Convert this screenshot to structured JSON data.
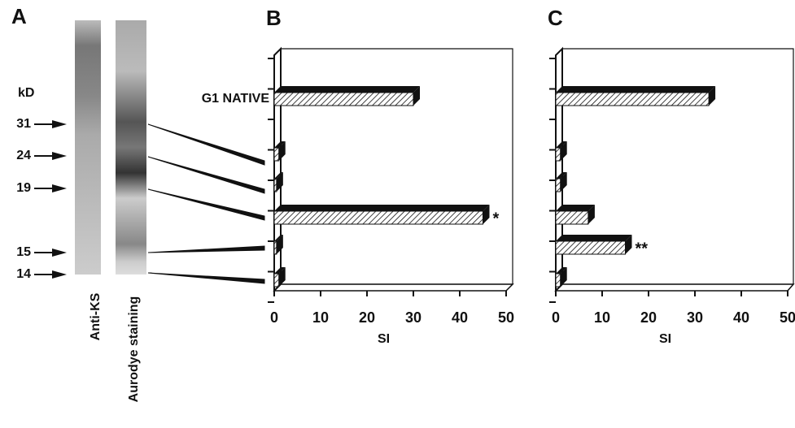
{
  "panel_a": {
    "label": "A",
    "unit": "kD",
    "markers": [
      31,
      24,
      19,
      15,
      14
    ],
    "lanes": [
      "Anti-KS",
      "Aurodye staining"
    ]
  },
  "chart_data": [
    {
      "type": "bar",
      "label": "B",
      "xlabel": "SI",
      "categories": [
        "G1 NATIVE",
        null,
        null,
        null,
        null,
        null
      ],
      "values": [
        30,
        1,
        0.5,
        45,
        0.5,
        1
      ],
      "xlim": [
        0,
        50
      ],
      "xticks": [
        0,
        10,
        20,
        30,
        40,
        50
      ],
      "annotations": [
        {
          "index": 3,
          "text": "*"
        }
      ]
    },
    {
      "type": "bar",
      "label": "C",
      "xlabel": "SI",
      "categories": [
        null,
        null,
        null,
        null,
        null,
        null
      ],
      "values": [
        33,
        1,
        1,
        7,
        15,
        1
      ],
      "xlim": [
        0,
        50
      ],
      "xticks": [
        0,
        10,
        20,
        30,
        40,
        50
      ],
      "annotations": [
        {
          "index": 4,
          "text": "**"
        }
      ]
    }
  ]
}
